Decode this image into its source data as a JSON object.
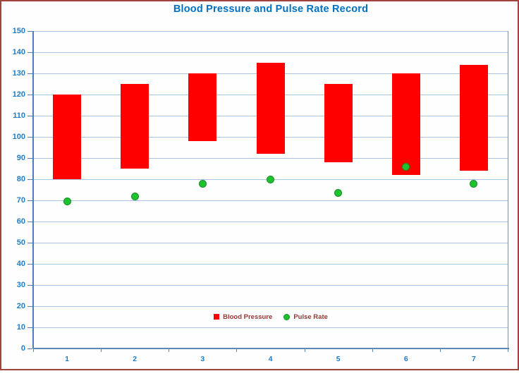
{
  "title": "Blood Pressure and Pulse Rate Record",
  "chart_data": {
    "type": "bar",
    "subtype": "floating-range-bars-with-scatter-points",
    "title": "Blood Pressure and Pulse Rate Record",
    "categories": [
      "1",
      "2",
      "3",
      "4",
      "5",
      "6",
      "7"
    ],
    "series": [
      {
        "name": "Blood Pressure",
        "mark": "range-bar",
        "values": [
          [
            80,
            120
          ],
          [
            85,
            125
          ],
          [
            98,
            130
          ],
          [
            92,
            135
          ],
          [
            88,
            125
          ],
          [
            82,
            130
          ],
          [
            84,
            134
          ]
        ]
      },
      {
        "name": "Pulse Rate",
        "mark": "point",
        "values": [
          69.5,
          72,
          78,
          80,
          73.5,
          86,
          78
        ]
      }
    ],
    "xlabel": "",
    "ylabel": "",
    "ylim": [
      0,
      150
    ],
    "ytick_step": 10,
    "grid": true,
    "legend_position": "bottom-center-inside-plot"
  },
  "legend": {
    "items": [
      {
        "label": "Blood Pressure",
        "marker": "square"
      },
      {
        "label": "Pulse Rate",
        "marker": "circle"
      }
    ]
  },
  "colors": {
    "title_text": "#0070c0",
    "axis_label_text": "#1e7cc6",
    "xaxis_label_text": "#1e7cc6",
    "gridline": "#a9c4de",
    "axis_line": "#4a7eb8",
    "xaxis_line": "#5b87b5",
    "plot_border_right": "#7f8c99",
    "bar_fill": "#fe0000",
    "point_fill": "#1fc12f",
    "point_border": "#0f9023",
    "legend_text": "#953735",
    "outer_border": "#a0423d"
  }
}
